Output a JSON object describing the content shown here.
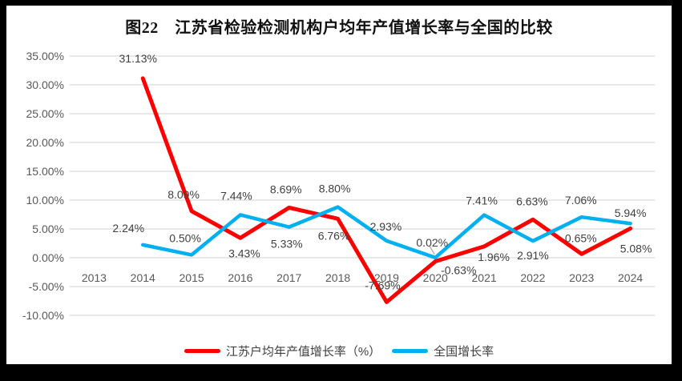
{
  "frame": {
    "border_color": "#000000",
    "chart_background": "#ffffff"
  },
  "chart_data": {
    "type": "line",
    "title": "图22　江苏省检验检测机构户均年产值增长率与全国的比较",
    "categories": [
      "2013",
      "2014",
      "2015",
      "2016",
      "2017",
      "2018",
      "2019",
      "2020",
      "2021",
      "2022",
      "2023",
      "2024"
    ],
    "series": [
      {
        "name": "江苏户均年产值增长率（%）",
        "color": "#FF0000",
        "stroke_width": 5,
        "values": [
          null,
          31.13,
          8.09,
          3.43,
          8.69,
          6.76,
          -7.69,
          -0.63,
          1.96,
          6.63,
          0.65,
          5.08
        ],
        "data_labels": [
          null,
          "31.13%",
          "8.09%",
          "3.43%",
          "8.69%",
          "6.76%",
          "-7.69%",
          "-0.63%",
          "1.96%",
          "6.63%",
          "0.65%",
          "5.08%"
        ],
        "label_offsets": [
          null,
          [
            -6,
            -25
          ],
          [
            -10,
            -21
          ],
          [
            5,
            19
          ],
          [
            -4,
            -23
          ],
          [
            -5,
            21
          ],
          [
            -5,
            -21
          ],
          [
            29,
            11
          ],
          [
            12,
            13
          ],
          [
            -1,
            -23
          ],
          [
            -1,
            -20
          ],
          [
            7,
            25
          ]
        ]
      },
      {
        "name": "全国增长率",
        "color": "#00B0F0",
        "stroke_width": 4.5,
        "values": [
          null,
          2.24,
          0.5,
          7.44,
          5.33,
          8.8,
          2.93,
          0.02,
          7.41,
          2.91,
          7.06,
          5.94
        ],
        "data_labels": [
          null,
          "2.24%",
          "0.50%",
          "7.44%",
          "5.33%",
          "8.80%",
          "2.93%",
          "0.02%",
          "7.41%",
          "2.91%",
          "7.06%",
          "5.94%"
        ],
        "label_offsets": [
          null,
          [
            -18,
            -21
          ],
          [
            -8,
            -21
          ],
          [
            -5,
            -24
          ],
          [
            -3,
            21
          ],
          [
            -4,
            -23
          ],
          [
            -1,
            -18
          ],
          [
            -4,
            -19
          ],
          [
            -3,
            -18
          ],
          [
            0,
            18
          ],
          [
            -1,
            -21
          ],
          [
            0,
            -13
          ]
        ],
        "leader_line_index": 7
      }
    ],
    "y_axis": {
      "min": -10,
      "max": 35,
      "step": 5,
      "tick_labels": [
        "35.00%",
        "30.00%",
        "25.00%",
        "20.00%",
        "15.00%",
        "10.00%",
        "5.00%",
        "0.00%",
        "-5.00%",
        "-10.00%"
      ]
    },
    "grid": true,
    "gridline_color": "#D9D9D9",
    "axis_text_color": "#595959",
    "data_label_color": "#404040",
    "leader_line_color": "#A6A6A6",
    "legend_position": "bottom"
  }
}
